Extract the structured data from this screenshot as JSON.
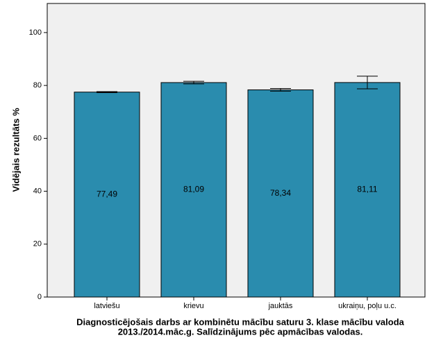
{
  "chart_data": {
    "type": "bar",
    "title": [
      "Diagnosticējošais darbs ar kombinētu mācību saturu 3. klase mācību valoda",
      "2013./2014.māc.g. Salīdzinājums pēc apmācības valodas."
    ],
    "y_label": "Vidējais rezultāts %",
    "categories": [
      "latviešu",
      "krievu",
      "jauktās",
      "ukraiņu, poļu u.c."
    ],
    "values": [
      77.49,
      81.09,
      78.34,
      81.11
    ],
    "value_labels": [
      "77,49",
      "81,09",
      "78,34",
      "81,11"
    ],
    "errors": [
      0.2,
      0.5,
      0.5,
      2.4
    ],
    "color": "#2a8cae",
    "ylim": [
      0,
      111
    ],
    "yticks": [
      0,
      20,
      40,
      60,
      80,
      100
    ]
  }
}
